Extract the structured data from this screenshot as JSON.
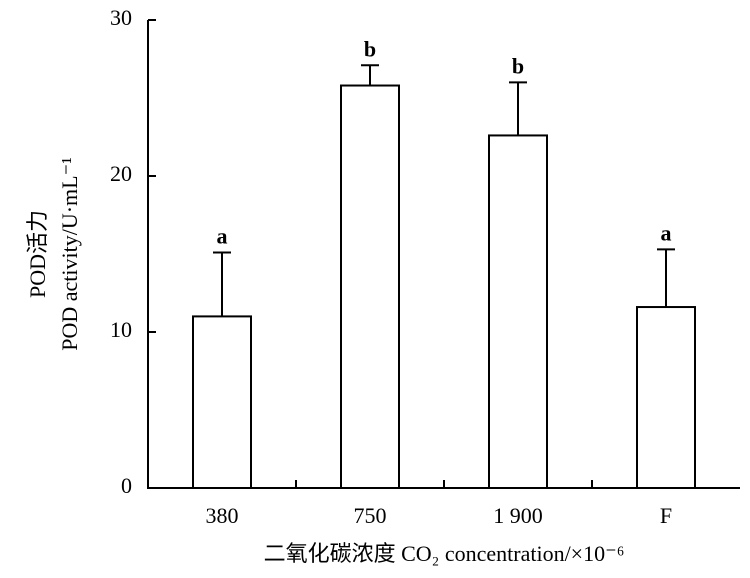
{
  "chart_data": {
    "type": "bar",
    "categories": [
      "380",
      "750",
      "1 900",
      "F"
    ],
    "values": [
      11.0,
      25.8,
      22.6,
      11.6
    ],
    "errors": [
      4.1,
      1.3,
      3.4,
      3.7
    ],
    "significance": [
      "a",
      "b",
      "b",
      "a"
    ],
    "color": "#ffffff",
    "ylim": [
      0,
      30
    ],
    "yticks": [
      0,
      10,
      20,
      30
    ],
    "y_label": [
      "POD活力",
      "POD activity/U·mL⁻¹"
    ],
    "x_label": "二氧化碳浓度  CO₂ concentration/×10⁻⁶",
    "grid": false
  }
}
